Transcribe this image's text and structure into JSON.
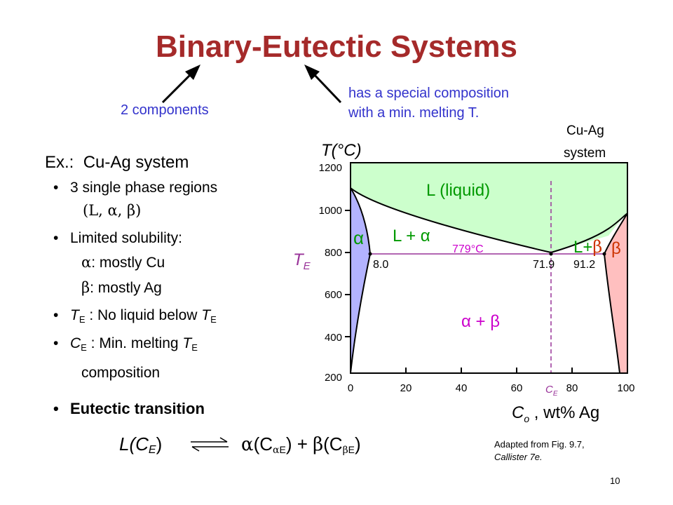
{
  "title": "Binary-Eutectic Systems",
  "annotations": {
    "components": "2 components",
    "special_line1": "has a special composition",
    "special_line2": "with a min. melting T."
  },
  "example": {
    "label": "Ex.:",
    "system": "Cu-Ag system",
    "bullet1_pre": "3",
    "bullet1_text": "single phase regions",
    "bullet1_line2": "(L, α, β)",
    "bullet2": "Limited solubility:",
    "alpha_sym": "α",
    "alpha_desc": ": mostly Cu",
    "beta_sym": "β",
    "beta_desc": ": mostly Ag",
    "te_sym": "T",
    "te_sub": "E",
    "te_desc": " :  No liquid below ",
    "te_end": "T",
    "te_end_sub": "E",
    "ce_sym": "C",
    "ce_sub": "E",
    "ce_desc": " :  Min. melting ",
    "ce_end": "T",
    "ce_end_sub": "E",
    "ce_line2": "composition",
    "eutectic_heading": "Eutectic transition"
  },
  "equation": {
    "left": "L(C",
    "left_sub": "E",
    "left_close": ")",
    "alpha": "α",
    "alpha_paren": "(C",
    "alpha_sub_greek": "α",
    "alpha_sub": "E",
    "alpha_close": ") + ",
    "beta": "β",
    "beta_paren": "(C",
    "beta_sub_greek": "β",
    "beta_sub": "E",
    "beta_close": ")"
  },
  "chart": {
    "y_axis_label": "T(°C)",
    "system_label_1": "Cu-Ag",
    "system_label_2": "system",
    "y_ticks": [
      "1200",
      "1000",
      "800",
      "600",
      "400",
      "200"
    ],
    "x_ticks": [
      "0",
      "20",
      "40",
      "60",
      "80",
      "100"
    ],
    "ce_tick": "C",
    "ce_tick_sub": "E",
    "x_axis_label_main": "C",
    "x_axis_label_sub": "o",
    "x_axis_label_rest": " , wt% Ag",
    "te_label": "T",
    "te_label_sub": "E",
    "region_liquid": "L (liquid)",
    "region_alpha": "α",
    "region_l_alpha": "L + α",
    "region_l_beta_l": "L+",
    "region_l_beta_b": "β",
    "region_beta": "β",
    "region_alpha_beta": "α + β",
    "eutectic_temp": "779°C",
    "comp_alpha": "8.0",
    "comp_eutectic": "71.9",
    "comp_beta": "91.2",
    "colors": {
      "liquid": "#ccffcc",
      "alpha": "#b3b3ff",
      "beta": "#ffbfbf",
      "isotherm": "#993399",
      "ce_line": "#993399",
      "dashed": "#993399"
    }
  },
  "credit_line1": "Adapted from Fig. 9.7,",
  "credit_line2": "Callister 7e.",
  "page_number": "10"
}
